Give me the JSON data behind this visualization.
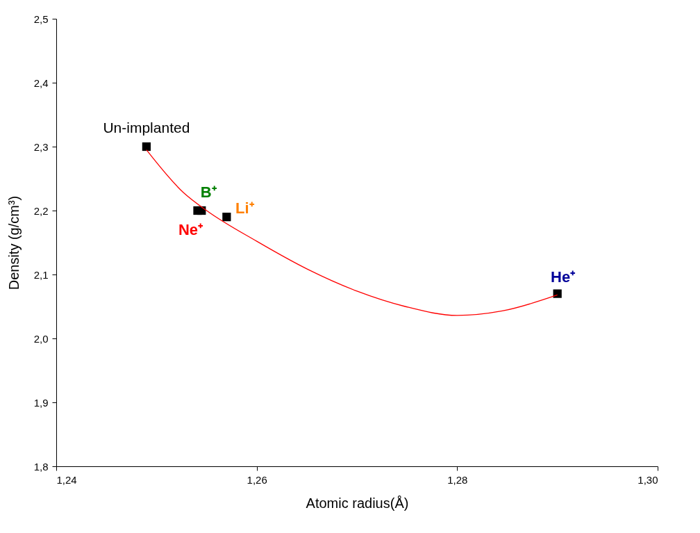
{
  "chart_data": {
    "type": "scatter",
    "xlabel": "Atomic radius(Å)",
    "ylabel": "Density (g/cm³)",
    "series": [
      {
        "name": "Un-implanted",
        "color": "#000000",
        "marker": "square",
        "x": [
          1.249
        ],
        "values": [
          2.3
        ]
      },
      {
        "name": "B⁺",
        "color": "#000000",
        "marker": "square",
        "x": [
          1.2545
        ],
        "values": [
          2.2
        ]
      },
      {
        "name": "Ne⁺",
        "color": "#000000",
        "marker": "square",
        "x": [
          1.2541
        ],
        "values": [
          2.2
        ]
      },
      {
        "name": "Li⁺",
        "color": "#000000",
        "marker": "square",
        "x": [
          1.257
        ],
        "values": [
          2.19
        ]
      },
      {
        "name": "He⁺",
        "color": "#000000",
        "marker": "square",
        "x": [
          1.29
        ],
        "values": [
          2.07
        ]
      },
      {
        "type": "line",
        "color": "#ff0000",
        "marker": "none",
        "line_style": "solid",
        "x": [
          1.249,
          1.2527,
          1.255,
          1.26,
          1.2651,
          1.27,
          1.2748,
          1.28,
          1.2845,
          1.29
        ],
        "values": [
          2.295,
          2.228,
          2.2,
          2.152,
          2.108,
          2.074,
          2.05,
          2.036,
          2.043,
          2.068
        ]
      }
    ],
    "xlim": [
      1.24,
      1.3
    ],
    "xticks": [
      {
        "value": 1.24,
        "label": "1,24"
      },
      {
        "value": 1.26,
        "label": "1,26"
      },
      {
        "value": 1.28,
        "label": "1,28"
      },
      {
        "value": 1.3,
        "label": "1,30"
      }
    ],
    "ylim": [
      1.8,
      2.5
    ],
    "yticks": [
      {
        "value": 1.8,
        "label": "1,8"
      },
      {
        "value": 1.9,
        "label": "1,9"
      },
      {
        "value": 2.0,
        "label": "2,0"
      },
      {
        "value": 2.1,
        "label": "2,1"
      },
      {
        "value": 2.2,
        "label": "2,2"
      },
      {
        "value": 2.3,
        "label": "2,3"
      },
      {
        "value": 2.4,
        "label": "2,4"
      },
      {
        "value": 2.5,
        "label": "2,5"
      }
    ],
    "grid": false,
    "legend": false
  }
}
